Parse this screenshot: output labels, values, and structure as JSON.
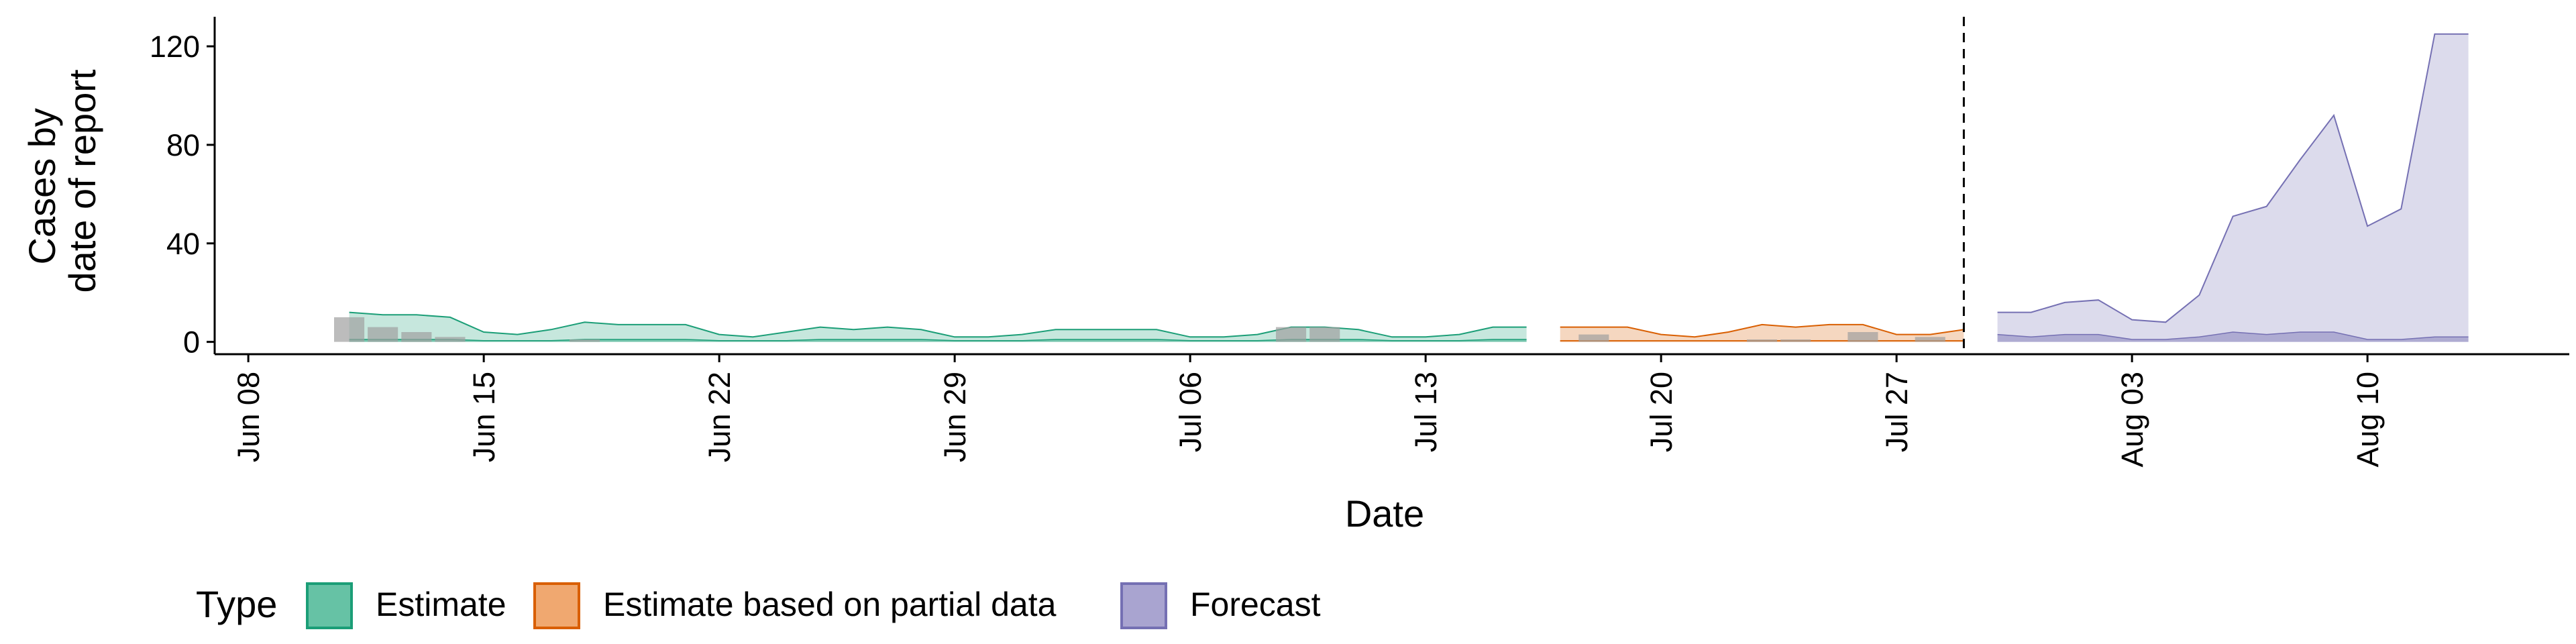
{
  "chart_data": {
    "type": "area",
    "xlabel": "Date",
    "ylabel": [
      "Cases by",
      "date of report"
    ],
    "xlim": [
      "2020-06-07",
      "2020-08-16"
    ],
    "ylim": [
      -5,
      132
    ],
    "y_ticks": [
      0,
      40,
      80,
      120
    ],
    "x_ticks": [
      {
        "date": "2020-06-08",
        "label": "Jun 08"
      },
      {
        "date": "2020-06-15",
        "label": "Jun 15"
      },
      {
        "date": "2020-06-22",
        "label": "Jun 22"
      },
      {
        "date": "2020-06-29",
        "label": "Jun 29"
      },
      {
        "date": "2020-07-06",
        "label": "Jul 06"
      },
      {
        "date": "2020-07-13",
        "label": "Jul 13"
      },
      {
        "date": "2020-07-20",
        "label": "Jul 20"
      },
      {
        "date": "2020-07-27",
        "label": "Jul 27"
      },
      {
        "date": "2020-08-03",
        "label": "Aug 03"
      },
      {
        "date": "2020-08-10",
        "label": "Aug 10"
      }
    ],
    "forecast_date": "2020-07-29",
    "grid": false,
    "legend": {
      "title": "Type",
      "position": "bottom-left",
      "entries": [
        {
          "label": "Estimate",
          "fill": "#66c2a5",
          "border": "#1b9e77"
        },
        {
          "label": "Estimate based on partial data",
          "fill": "#f0a870",
          "border": "#d95f02"
        },
        {
          "label": "Forecast",
          "fill": "#a9a4d0",
          "border": "#7570b3"
        }
      ]
    },
    "series": [
      {
        "name": "Estimate",
        "fill": "#1b9e77",
        "line": "#1b9e77",
        "x": [
          "2020-06-11",
          "2020-06-12",
          "2020-06-13",
          "2020-06-14",
          "2020-06-15",
          "2020-06-16",
          "2020-06-17",
          "2020-06-18",
          "2020-06-19",
          "2020-06-20",
          "2020-06-21",
          "2020-06-22",
          "2020-06-23",
          "2020-06-24",
          "2020-06-25",
          "2020-06-26",
          "2020-06-27",
          "2020-06-28",
          "2020-06-29",
          "2020-06-30",
          "2020-07-01",
          "2020-07-02",
          "2020-07-03",
          "2020-07-04",
          "2020-07-05",
          "2020-07-06",
          "2020-07-07",
          "2020-07-08",
          "2020-07-09",
          "2020-07-10",
          "2020-07-11",
          "2020-07-12",
          "2020-07-13",
          "2020-07-14",
          "2020-07-15",
          "2020-07-16"
        ],
        "upper": [
          12,
          11,
          11,
          10,
          4,
          3,
          5,
          8,
          7,
          7,
          7,
          3,
          2,
          4,
          6,
          5,
          6,
          5,
          2,
          2,
          3,
          5,
          5,
          5,
          5,
          2,
          2,
          3,
          6,
          6,
          5,
          2,
          2,
          3,
          6,
          6
        ],
        "inner": [
          1,
          1,
          1,
          1,
          0.5,
          0.5,
          0.5,
          1,
          1,
          1,
          1,
          0.5,
          0.5,
          0.5,
          1,
          1,
          1,
          1,
          0.5,
          0.5,
          0.5,
          1,
          1,
          1,
          1,
          0.5,
          0.5,
          0.5,
          1,
          1,
          1,
          0.5,
          0.5,
          0.5,
          1,
          1
        ]
      },
      {
        "name": "Estimate based on partial data",
        "fill": "#d95f02",
        "line": "#d95f02",
        "x": [
          "2020-07-17",
          "2020-07-18",
          "2020-07-19",
          "2020-07-20",
          "2020-07-21",
          "2020-07-22",
          "2020-07-23",
          "2020-07-24",
          "2020-07-25",
          "2020-07-26",
          "2020-07-27",
          "2020-07-28",
          "2020-07-29"
        ],
        "upper": [
          6,
          6,
          6,
          3,
          2,
          4,
          7,
          6,
          7,
          7,
          3,
          3,
          5
        ],
        "inner": [
          0.5,
          0.5,
          0.5,
          0.5,
          0.5,
          0.5,
          0.5,
          0.5,
          0.5,
          0.5,
          0.5,
          0.5,
          0.5
        ]
      },
      {
        "name": "Forecast",
        "fill": "#7570b3",
        "line": "#7570b3",
        "x": [
          "2020-07-30",
          "2020-07-31",
          "2020-08-01",
          "2020-08-02",
          "2020-08-03",
          "2020-08-04",
          "2020-08-05",
          "2020-08-06",
          "2020-08-07",
          "2020-08-08",
          "2020-08-09",
          "2020-08-10",
          "2020-08-11",
          "2020-08-12",
          "2020-08-13"
        ],
        "upper": [
          12,
          12,
          16,
          17,
          9,
          8,
          19,
          51,
          55,
          74,
          92,
          47,
          54,
          125,
          125
        ],
        "inner": [
          3,
          2,
          3,
          3,
          1,
          1,
          2,
          4,
          3,
          4,
          4,
          1,
          1,
          2,
          2
        ]
      }
    ],
    "observed": {
      "color": "#a0a0a0",
      "x": [
        "2020-06-11",
        "2020-06-12",
        "2020-06-13",
        "2020-06-14",
        "2020-06-18",
        "2020-07-09",
        "2020-07-10",
        "2020-07-18",
        "2020-07-23",
        "2020-07-24",
        "2020-07-26",
        "2020-07-28"
      ],
      "values": [
        10,
        6,
        4,
        2,
        1,
        6,
        6,
        3,
        1,
        1,
        4,
        2
      ]
    }
  }
}
